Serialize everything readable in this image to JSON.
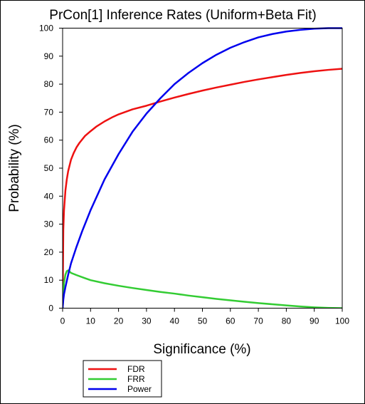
{
  "chart_data": {
    "type": "line",
    "title": "PrCon[1] Inference Rates (Uniform+Beta Fit)",
    "xlabel": "Significance (%)",
    "ylabel": "Probability (%)",
    "xlim": [
      0,
      100
    ],
    "ylim": [
      0,
      100
    ],
    "xticks": [
      0,
      10,
      20,
      30,
      40,
      50,
      60,
      70,
      80,
      90,
      100
    ],
    "yticks": [
      0,
      10,
      20,
      30,
      40,
      50,
      60,
      70,
      80,
      90,
      100
    ],
    "grid": false,
    "legend": "bottom-left",
    "series": [
      {
        "name": "FDR",
        "color": "#ee1111",
        "x": [
          0,
          0.25,
          0.5,
          1,
          1.5,
          2,
          3,
          4,
          5,
          6,
          8,
          10,
          12,
          15,
          18,
          20,
          25,
          30,
          35,
          40,
          45,
          50,
          55,
          60,
          65,
          70,
          75,
          80,
          85,
          90,
          95,
          100
        ],
        "y": [
          0,
          28,
          35,
          42,
          46,
          49,
          53,
          55.5,
          57.5,
          59,
          61.5,
          63.2,
          64.8,
          66.7,
          68.3,
          69.2,
          71,
          72.3,
          73.8,
          75.2,
          76.5,
          77.7,
          78.8,
          79.8,
          80.8,
          81.7,
          82.5,
          83.3,
          84,
          84.6,
          85.1,
          85.5
        ]
      },
      {
        "name": "FRR",
        "color": "#33cc33",
        "x": [
          0,
          0.5,
          1,
          1.5,
          2,
          3,
          5,
          8,
          10,
          15,
          20,
          25,
          30,
          35,
          40,
          45,
          50,
          55,
          60,
          65,
          70,
          75,
          80,
          85,
          90,
          95,
          100
        ],
        "y": [
          0,
          9,
          12,
          13.2,
          13.5,
          12.6,
          11.8,
          10.7,
          10,
          8.9,
          8,
          7.2,
          6.5,
          5.8,
          5.2,
          4.5,
          3.9,
          3.3,
          2.8,
          2.3,
          1.8,
          1.4,
          1,
          0.6,
          0.3,
          0.1,
          0
        ]
      },
      {
        "name": "Power",
        "color": "#0000ee",
        "x": [
          0,
          0.25,
          0.5,
          1,
          2,
          3,
          5,
          7,
          10,
          15,
          20,
          25,
          30,
          35,
          40,
          45,
          50,
          55,
          60,
          65,
          70,
          75,
          80,
          85,
          90,
          95,
          100
        ],
        "y": [
          0,
          3,
          5,
          7.5,
          12,
          16,
          22,
          27.5,
          35,
          46,
          55,
          63,
          69.5,
          75,
          80,
          84,
          87.5,
          90.5,
          93,
          95,
          96.7,
          97.9,
          98.8,
          99.4,
          99.8,
          100,
          100
        ]
      }
    ]
  }
}
